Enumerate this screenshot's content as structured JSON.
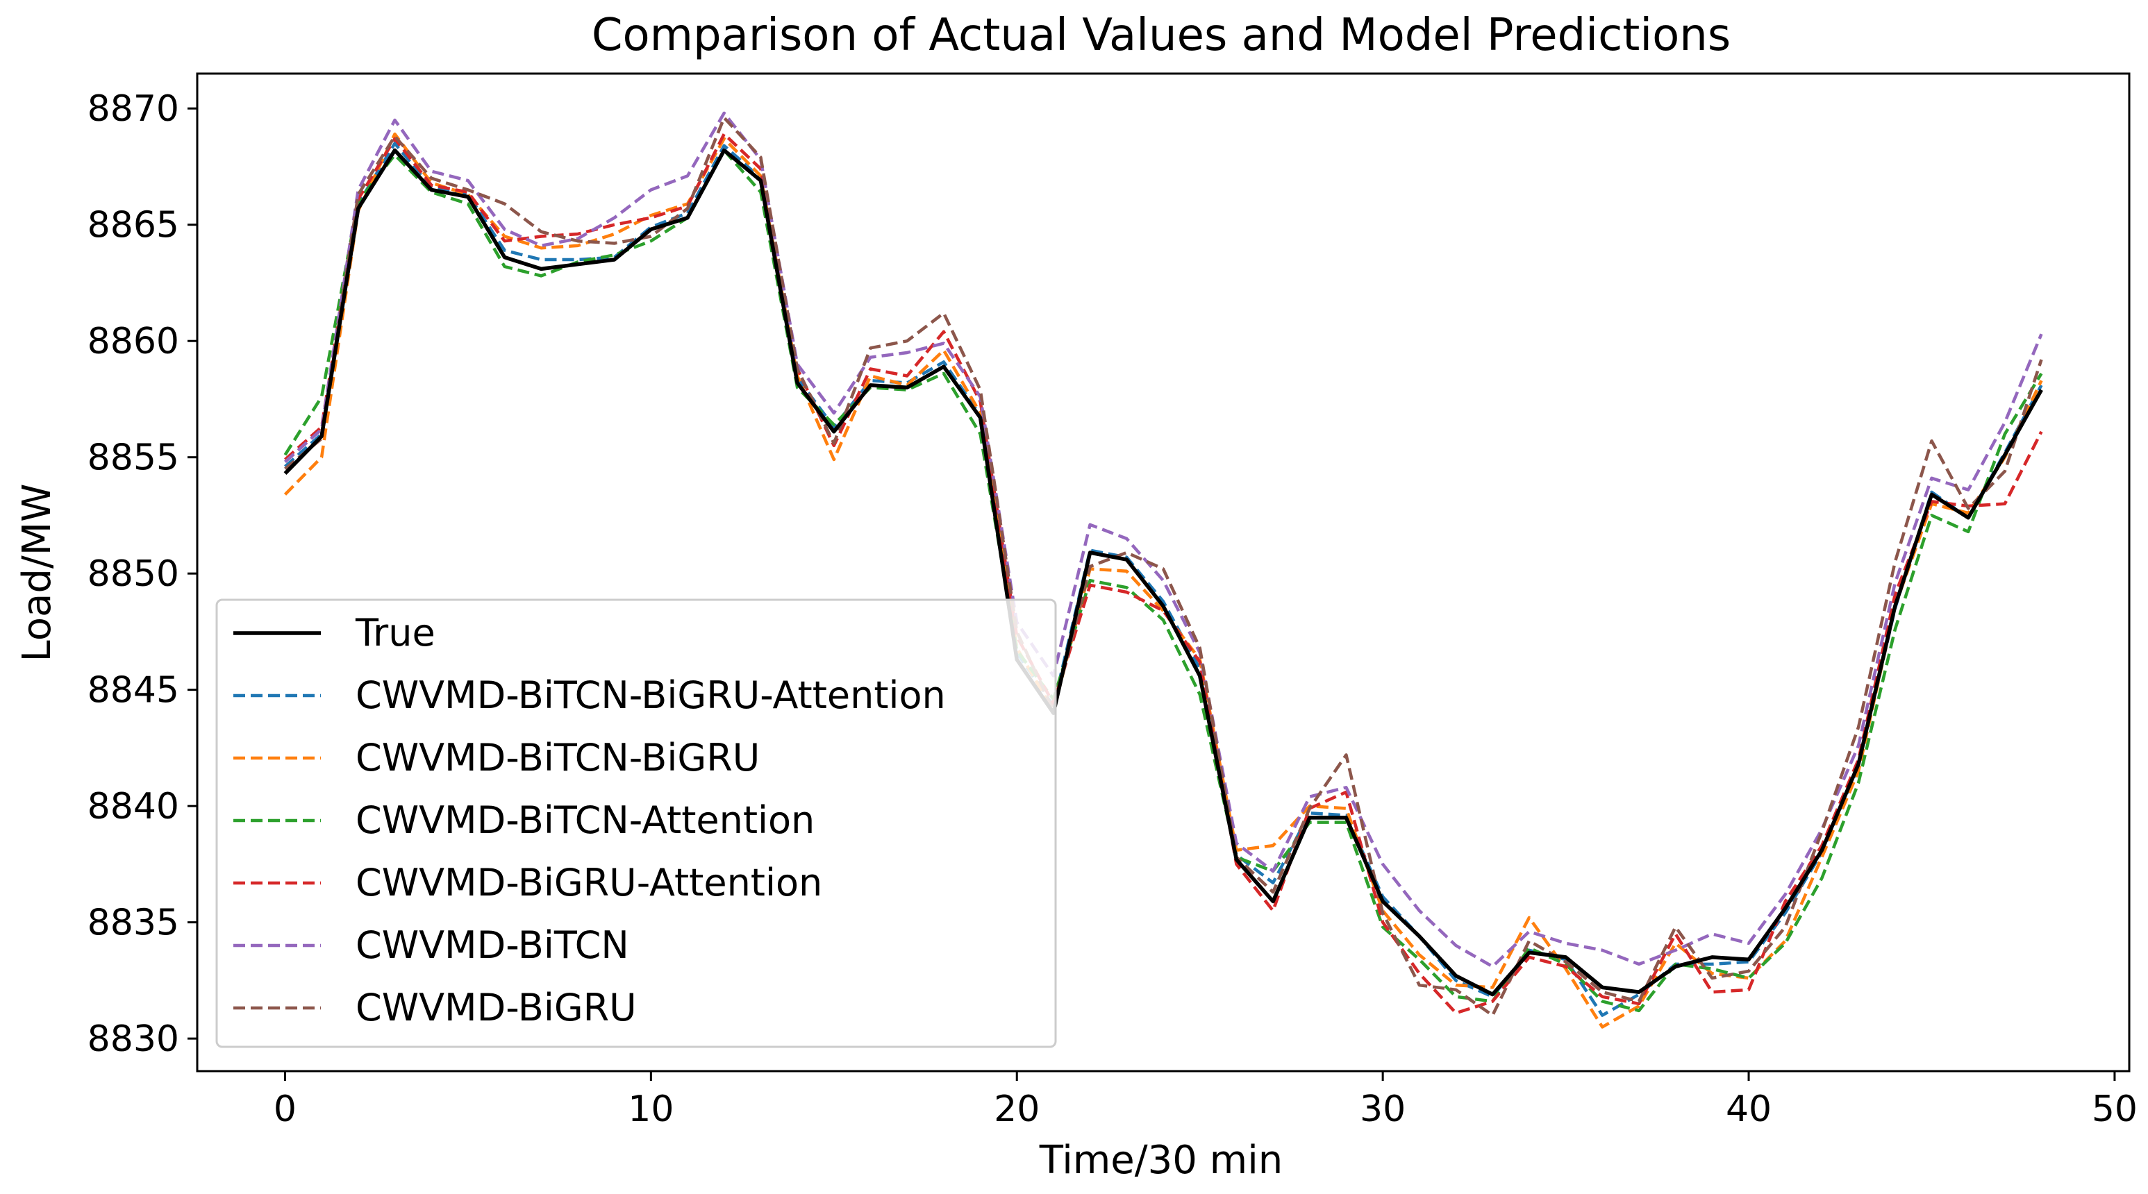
{
  "chart_data": {
    "type": "line",
    "title": "Comparison of Actual Values and Model Predictions",
    "xlabel": "Time/30 min",
    "ylabel": "Load/MW",
    "xlim": [
      -2.4,
      50.4
    ],
    "ylim": [
      8828.6,
      8871.5
    ],
    "xticks": [
      0,
      10,
      20,
      30,
      40,
      50
    ],
    "yticks": [
      8830,
      8835,
      8840,
      8845,
      8850,
      8855,
      8860,
      8865,
      8870
    ],
    "grid": false,
    "legend_position": "center-left",
    "x": [
      0,
      1,
      2,
      3,
      4,
      5,
      6,
      7,
      8,
      9,
      10,
      11,
      12,
      13,
      14,
      15,
      16,
      17,
      18,
      19,
      20,
      21,
      22,
      23,
      24,
      25,
      26,
      27,
      28,
      29,
      30,
      31,
      32,
      33,
      34,
      35,
      36,
      37,
      38,
      39,
      40,
      41,
      42,
      43,
      44,
      45,
      46,
      47,
      48
    ],
    "series": [
      {
        "name": "True",
        "color": "#000000",
        "dash": false,
        "values": [
          8854.3,
          8855.9,
          8865.7,
          8868.2,
          8866.5,
          8866.2,
          8863.6,
          8863.1,
          8863.3,
          8863.5,
          8864.8,
          8865.3,
          8868.2,
          8866.9,
          8858.2,
          8856.1,
          8858.1,
          8858.0,
          8858.9,
          8856.7,
          8846.3,
          8844.0,
          8850.9,
          8850.6,
          8848.6,
          8845.6,
          8837.7,
          8835.9,
          8839.5,
          8839.5,
          8835.9,
          8834.4,
          8832.7,
          8831.9,
          8833.7,
          8833.5,
          8832.2,
          8832.0,
          8833.1,
          8833.5,
          8833.4,
          8835.6,
          8838.1,
          8841.8,
          8848.6,
          8853.4,
          8852.4,
          8855.1,
          8857.9
        ]
      },
      {
        "name": "CWVMD-BiTCN-BiGRU-Attention",
        "color": "#1f77b4",
        "dash": true,
        "values": [
          8854.6,
          8856.0,
          8865.9,
          8868.5,
          8866.6,
          8866.3,
          8863.9,
          8863.5,
          8863.5,
          8863.6,
          8864.9,
          8865.5,
          8868.4,
          8867.0,
          8858.4,
          8856.3,
          8858.3,
          8858.2,
          8859.1,
          8856.8,
          8846.6,
          8844.3,
          8851.0,
          8850.7,
          8848.8,
          8845.9,
          8837.9,
          8836.7,
          8839.7,
          8839.6,
          8836.1,
          8834.4,
          8832.5,
          8831.8,
          8833.8,
          8833.4,
          8831.0,
          8831.9,
          8833.2,
          8833.2,
          8833.3,
          8835.4,
          8838.0,
          8841.7,
          8848.5,
          8853.5,
          8852.4,
          8855.2,
          8858.1
        ]
      },
      {
        "name": "CWVMD-BiTCN-BiGRU",
        "color": "#ff7f0e",
        "dash": true,
        "values": [
          8853.4,
          8855.0,
          8865.6,
          8868.9,
          8866.8,
          8866.3,
          8864.5,
          8864.0,
          8864.1,
          8864.6,
          8865.4,
          8865.9,
          8868.7,
          8867.1,
          8858.5,
          8854.9,
          8858.5,
          8858.1,
          8859.6,
          8856.9,
          8846.8,
          8844.1,
          8850.2,
          8850.1,
          8848.4,
          8846.3,
          8838.1,
          8838.3,
          8840.0,
          8839.9,
          8835.5,
          8833.6,
          8832.3,
          8832.2,
          8835.2,
          8833.0,
          8830.5,
          8831.4,
          8834.1,
          8832.8,
          8832.6,
          8834.2,
          8837.8,
          8841.5,
          8848.6,
          8853.0,
          8852.6,
          8855.0,
          8858.3
        ]
      },
      {
        "name": "CWVMD-BiTCN-Attention",
        "color": "#2ca02c",
        "dash": true,
        "values": [
          8855.1,
          8857.6,
          8866.0,
          8868.0,
          8866.4,
          8865.9,
          8863.2,
          8862.8,
          8863.4,
          8863.7,
          8864.3,
          8865.3,
          8868.2,
          8866.4,
          8858.0,
          8856.4,
          8858.0,
          8857.9,
          8858.6,
          8856.0,
          8846.7,
          8844.6,
          8849.7,
          8849.4,
          8848.0,
          8844.8,
          8837.8,
          8837.2,
          8839.3,
          8839.3,
          8834.8,
          8833.4,
          8831.8,
          8831.6,
          8833.9,
          8833.2,
          8831.6,
          8831.2,
          8833.2,
          8833.0,
          8832.6,
          8834.1,
          8836.9,
          8841.0,
          8847.6,
          8852.5,
          8851.8,
          8856.0,
          8858.6
        ]
      },
      {
        "name": "CWVMD-BiGRU-Attention",
        "color": "#d62728",
        "dash": true,
        "values": [
          8854.9,
          8856.3,
          8866.1,
          8868.7,
          8866.7,
          8866.4,
          8864.3,
          8864.5,
          8864.6,
          8865.0,
          8865.3,
          8865.8,
          8868.9,
          8867.4,
          8858.8,
          8855.5,
          8858.8,
          8858.5,
          8860.4,
          8857.4,
          8847.3,
          8844.4,
          8849.5,
          8849.2,
          8848.4,
          8846.2,
          8837.5,
          8835.5,
          8839.9,
          8840.6,
          8835.0,
          8832.8,
          8831.1,
          8831.6,
          8833.5,
          8833.1,
          8831.8,
          8831.5,
          8834.5,
          8832.0,
          8832.1,
          8835.9,
          8838.3,
          8842.0,
          8849.1,
          8853.1,
          8852.9,
          8853.0,
          8856.1
        ]
      },
      {
        "name": "CWVMD-BiTCN",
        "color": "#9467bd",
        "dash": true,
        "values": [
          8854.8,
          8856.2,
          8866.5,
          8869.5,
          8867.3,
          8866.9,
          8864.8,
          8864.1,
          8864.4,
          8865.3,
          8866.5,
          8867.1,
          8869.8,
          8867.8,
          8859.0,
          8856.9,
          8859.3,
          8859.5,
          8859.9,
          8857.6,
          8847.9,
          8845.6,
          8852.1,
          8851.5,
          8849.7,
          8846.6,
          8838.4,
          8837.2,
          8840.4,
          8840.8,
          8837.5,
          8835.5,
          8834.0,
          8833.1,
          8834.6,
          8834.1,
          8833.8,
          8833.2,
          8833.8,
          8834.5,
          8834.1,
          8836.2,
          8839.0,
          8842.6,
          8849.6,
          8854.1,
          8853.6,
          8856.5,
          8860.3
        ]
      },
      {
        "name": "CWVMD-BiGRU",
        "color": "#8c564b",
        "dash": true,
        "values": [
          8854.5,
          8855.8,
          8866.3,
          8868.8,
          8867.0,
          8866.5,
          8865.9,
          8864.7,
          8864.3,
          8864.2,
          8864.5,
          8865.7,
          8869.6,
          8867.9,
          8858.8,
          8855.6,
          8859.7,
          8860.0,
          8861.2,
          8857.9,
          8847.5,
          8844.1,
          8850.3,
          8850.9,
          8850.2,
          8846.8,
          8837.8,
          8836.3,
          8839.9,
          8842.2,
          8835.4,
          8832.3,
          8832.1,
          8831.0,
          8834.2,
          8833.3,
          8832.0,
          8831.6,
          8834.8,
          8832.6,
          8832.9,
          8834.8,
          8838.9,
          8843.4,
          8850.5,
          8855.7,
          8852.8,
          8854.4,
          8859.2
        ]
      }
    ]
  }
}
